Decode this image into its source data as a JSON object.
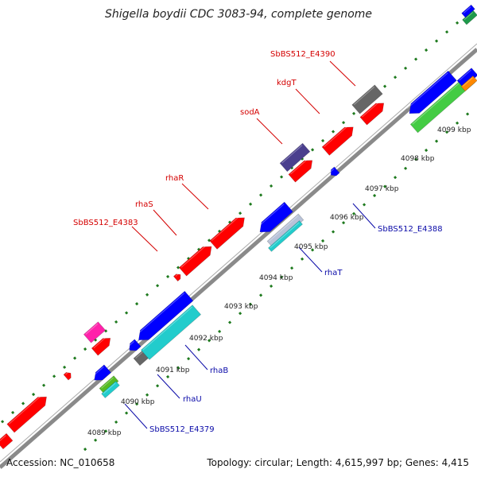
{
  "title": "Shigella boydii CDC 3083-94, complete genome",
  "footer": {
    "accession": "Accession: NC_010658",
    "summary": "Topology: circular; Length: 4,615,997 bp; Genes: 4,415"
  },
  "colors": {
    "backbone": "#8a8a8a",
    "dots": "#1e7a1e",
    "forward_label": "#d40000",
    "reverse_label": "#0a0aa8"
  },
  "ticks": [
    {
      "label": "4089 kbp"
    },
    {
      "label": "4090 kbp"
    },
    {
      "label": "4091 kbp"
    },
    {
      "label": "4092 kbp"
    },
    {
      "label": "4093 kbp"
    },
    {
      "label": "4094 kbp"
    },
    {
      "label": "4095 kbp"
    },
    {
      "label": "4096 kbp"
    },
    {
      "label": "4097 kbp"
    },
    {
      "label": "4098 kbp"
    },
    {
      "label": "4099 kbp"
    }
  ],
  "forward_labels": [
    {
      "label": "SbBS512_E4383"
    },
    {
      "label": "rhaS"
    },
    {
      "label": "rhaR"
    },
    {
      "label": "sodA"
    },
    {
      "label": "kdgT"
    },
    {
      "label": "SbBS512_E4390"
    }
  ],
  "reverse_labels": [
    {
      "label": "SbBS512_E4379"
    },
    {
      "label": "rhaU"
    },
    {
      "label": "rhaB"
    },
    {
      "label": "rhaT"
    },
    {
      "label": "SbBS512_E4388"
    }
  ]
}
